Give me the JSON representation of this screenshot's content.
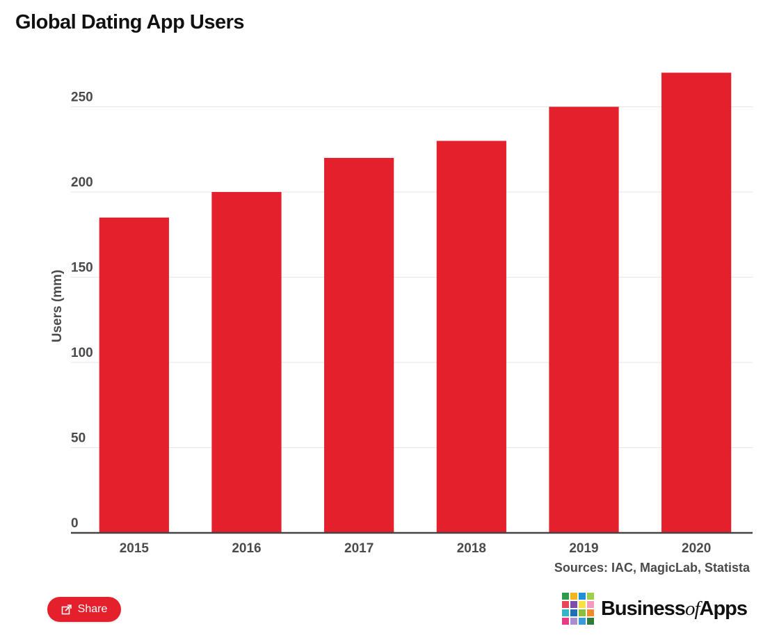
{
  "title": "Global Dating App Users",
  "source": "Sources: IAC, MagicLab, Statista",
  "share_label": "Share",
  "logo": {
    "word1": "Business",
    "word2": "of",
    "word3": "Apps",
    "grid_colors": [
      "#2e9a4a",
      "#f2b51e",
      "#1f8fd6",
      "#9dcf4a",
      "#e8475a",
      "#7d4fa8",
      "#f7e246",
      "#f39ac0",
      "#34b4c8",
      "#1e6fb8",
      "#8bbe3a",
      "#ef8a2d",
      "#e93a87",
      "#a78fd0",
      "#3a9bd8",
      "#2f7c3d"
    ]
  },
  "colors": {
    "bar": "#e3202c",
    "grid": "#e6e6e6",
    "axis": "#444444"
  },
  "chart_data": {
    "type": "bar",
    "title": "Global Dating App Users",
    "xlabel": "",
    "ylabel": "Users (mm)",
    "categories": [
      "2015",
      "2016",
      "2017",
      "2018",
      "2019",
      "2020"
    ],
    "values": [
      185,
      200,
      220,
      230,
      250,
      270
    ],
    "ylim": [
      0,
      280
    ],
    "yticks": [
      0,
      50,
      100,
      150,
      200,
      250
    ],
    "grid": true,
    "legend": "none"
  }
}
